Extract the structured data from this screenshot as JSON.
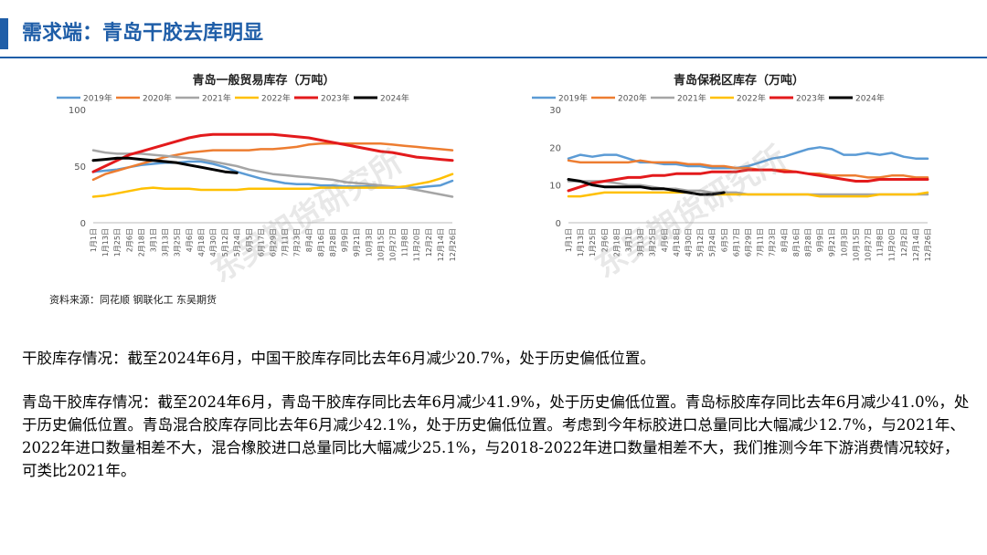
{
  "header": {
    "title": "需求端：青岛干胶去库明显"
  },
  "source": "资料来源：同花顺  钢联化工  东吴期货",
  "paragraphs": [
    "干胶库存情况：截至2024年6月，中国干胶库存同比去年6月减少20.7%，处于历史偏低位置。",
    "青岛干胶库存情况：截至2024年6月，青岛干胶库存同比去年6月减少41.9%，处于历史偏低位置。青岛标胶库存同比去年6月减少41.0%，处于历史偏低位置。青岛混合胶库存同比去年6月减少42.1%，处于历史偏低位置。考虑到今年标胶进口总量同比大幅减少12.7%，与2021年、2022年进口数量相差不大，混合橡胶进口总量同比大幅减少25.1%，与2018-2022年进口数量相差不大，我们推测今年下游消费情况较好，可类比2021年。"
  ],
  "watermark": "东吴期货研究所",
  "colors": {
    "title": "#1f5ea8",
    "2019": "#5b9bd5",
    "2020": "#ed7d31",
    "2021": "#a5a5a5",
    "2022": "#ffc000",
    "2023": "#e31a1c",
    "2024": "#000000"
  },
  "chart_data": [
    {
      "type": "line",
      "title": "青岛一般贸易库存（万吨）",
      "legend_position": "top",
      "ylim": [
        0,
        100
      ],
      "yticks": [
        0,
        50,
        100
      ],
      "xticklabels": [
        "1月1日",
        "1月13日",
        "1月25日",
        "2月6日",
        "2月18日",
        "3月1日",
        "3月13日",
        "3月25日",
        "4月6日",
        "4月18日",
        "4月30日",
        "5月12日",
        "5月24日",
        "6月5日",
        "6月17日",
        "6月29日",
        "7月11日",
        "7月23日",
        "8月4日",
        "8月16日",
        "8月28日",
        "9月9日",
        "9月21日",
        "10月3日",
        "10月15日",
        "10月27日",
        "11月8日",
        "11月20日",
        "12月2日",
        "12月14日",
        "12月26日"
      ],
      "series": [
        {
          "name": "2019年",
          "values": [
            45,
            46,
            47,
            49,
            51,
            52,
            53,
            53,
            54,
            54,
            52,
            49,
            45,
            42,
            39,
            37,
            35,
            34,
            34,
            33,
            33,
            32,
            32,
            32,
            32,
            31,
            31,
            31,
            32,
            33,
            37
          ]
        },
        {
          "name": "2020年",
          "values": [
            38,
            43,
            46,
            49,
            52,
            55,
            58,
            60,
            62,
            63,
            64,
            64,
            64,
            64,
            65,
            65,
            66,
            67,
            69,
            70,
            70,
            70,
            70,
            70,
            70,
            69,
            68,
            67,
            66,
            65,
            64
          ]
        },
        {
          "name": "2021年",
          "values": [
            64,
            62,
            61,
            61,
            61,
            60,
            59,
            58,
            57,
            56,
            54,
            52,
            50,
            47,
            45,
            43,
            42,
            41,
            40,
            39,
            38,
            36,
            35,
            34,
            33,
            32,
            31,
            29,
            27,
            25,
            23
          ]
        },
        {
          "name": "2022年",
          "values": [
            23,
            24,
            26,
            28,
            30,
            31,
            30,
            30,
            30,
            29,
            29,
            29,
            29,
            30,
            30,
            30,
            30,
            30,
            30,
            31,
            31,
            31,
            31,
            31,
            31,
            31,
            32,
            34,
            36,
            39,
            43
          ]
        },
        {
          "name": "2023年",
          "values": [
            45,
            50,
            55,
            60,
            63,
            66,
            69,
            72,
            75,
            77,
            78,
            78,
            78,
            78,
            78,
            78,
            77,
            76,
            75,
            73,
            71,
            69,
            67,
            65,
            63,
            62,
            60,
            58,
            57,
            56,
            55
          ]
        },
        {
          "name": "2024年",
          "values": [
            55,
            56,
            57,
            57,
            56,
            55,
            54,
            53,
            51,
            49,
            47,
            45,
            44
          ]
        }
      ]
    },
    {
      "type": "line",
      "title": "青岛保税区库存（万吨）",
      "legend_position": "top",
      "ylim": [
        0,
        30
      ],
      "yticks": [
        0,
        10,
        20,
        30
      ],
      "xticklabels": [
        "1月1日",
        "1月13日",
        "1月25日",
        "2月6日",
        "2月18日",
        "3月1日",
        "3月13日",
        "3月25日",
        "4月6日",
        "4月18日",
        "4月30日",
        "5月12日",
        "5月24日",
        "6月5日",
        "6月17日",
        "6月29日",
        "7月11日",
        "7月23日",
        "8月4日",
        "8月16日",
        "8月28日",
        "9月9日",
        "9月21日",
        "10月3日",
        "10月15日",
        "10月27日",
        "11月8日",
        "11月20日",
        "12月2日",
        "12月14日",
        "12月26日"
      ],
      "series": [
        {
          "name": "2019年",
          "values": [
            17,
            18,
            17.5,
            18,
            18,
            17,
            16,
            16,
            15.5,
            15.5,
            15,
            15,
            14.5,
            14.5,
            14.5,
            15,
            16,
            17,
            17.5,
            18.5,
            19.5,
            20,
            19.5,
            18,
            18,
            18.5,
            18,
            18.5,
            17.5,
            17,
            17
          ]
        },
        {
          "name": "2020年",
          "values": [
            16.5,
            16,
            16,
            16,
            16,
            16,
            16.5,
            16,
            16,
            16,
            15.5,
            15.5,
            15,
            15,
            14.5,
            14.5,
            14,
            14,
            14,
            13.5,
            13,
            13,
            12.5,
            12.5,
            12.5,
            12,
            12,
            12.5,
            12.5,
            12,
            12
          ]
        },
        {
          "name": "2021年",
          "values": [
            11,
            11,
            11,
            11,
            10.5,
            10,
            10,
            9.5,
            9,
            9,
            8.5,
            8.5,
            8,
            8,
            8,
            7.5,
            7.5,
            7.5,
            7.5,
            7.5,
            7.5,
            7.5,
            7.5,
            7.5,
            7.5,
            7.5,
            7.5,
            7.5,
            7.5,
            7.5,
            7.5
          ]
        },
        {
          "name": "2022年",
          "values": [
            7,
            7,
            7.5,
            8,
            8,
            8,
            8,
            8,
            8,
            8,
            8,
            7.5,
            7.5,
            7.5,
            7.5,
            7.5,
            7.5,
            7.5,
            7.5,
            7.5,
            7.5,
            7,
            7,
            7,
            7,
            7,
            7.5,
            7.5,
            7.5,
            7.5,
            8
          ]
        },
        {
          "name": "2023年",
          "values": [
            8.5,
            9.5,
            10.5,
            11,
            11.5,
            12,
            12,
            12.5,
            12.5,
            13,
            13,
            13,
            13.5,
            13.5,
            13.5,
            14,
            14,
            14,
            13.5,
            13.5,
            13,
            12.5,
            12,
            11.5,
            11,
            11,
            11.5,
            11.5,
            11.5,
            11.5,
            11.5
          ]
        },
        {
          "name": "2024年",
          "values": [
            11.5,
            11,
            10,
            9.5,
            9.5,
            9.5,
            9.5,
            9,
            9,
            8.5,
            8,
            7.5,
            7.5,
            8
          ]
        }
      ]
    }
  ]
}
